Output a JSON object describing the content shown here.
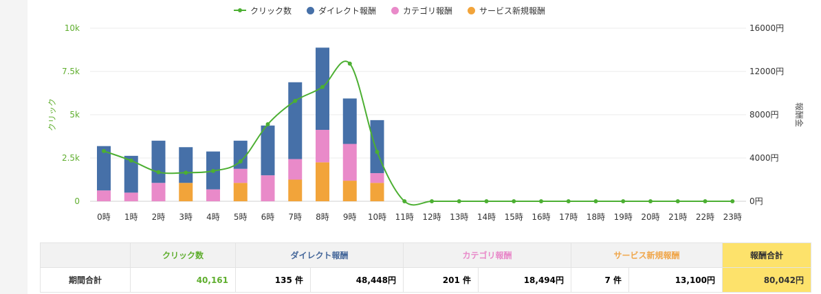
{
  "legend": {
    "clicks": "クリック数",
    "direct": "ダイレクト報酬",
    "category": "カテゴリ報酬",
    "service": "サービス新規報酬"
  },
  "colors": {
    "clicks": "#4caf32",
    "direct": "#4670a8",
    "category": "#e98ac9",
    "service": "#f2a43a"
  },
  "axes": {
    "left_label": "クリック",
    "right_label": "報酬金",
    "left_ticks": [
      "0",
      "2.5k",
      "5k",
      "7.5k",
      "10k"
    ],
    "right_ticks": [
      "0円",
      "4000円",
      "8000円",
      "12000円",
      "16000円"
    ]
  },
  "chart_data": {
    "type": "bar",
    "stacked": true,
    "categories": [
      "0時",
      "1時",
      "2時",
      "3時",
      "4時",
      "5時",
      "6時",
      "7時",
      "8時",
      "9時",
      "10時",
      "11時",
      "12時",
      "13時",
      "14時",
      "15時",
      "16時",
      "17時",
      "18時",
      "19時",
      "20時",
      "21時",
      "22時",
      "23時"
    ],
    "ylim_left": [
      0,
      10000
    ],
    "ylim_right": [
      0,
      16000
    ],
    "series": [
      {
        "name": "サービス新規報酬",
        "axis": "right",
        "values": [
          0,
          0,
          0,
          1700,
          0,
          1700,
          0,
          2000,
          3600,
          1900,
          1700,
          0,
          0,
          0,
          0,
          0,
          0,
          0,
          0,
          0,
          0,
          0,
          0,
          0
        ]
      },
      {
        "name": "カテゴリ報酬",
        "axis": "right",
        "values": [
          1000,
          800,
          1700,
          0,
          1100,
          1300,
          2400,
          1900,
          3000,
          3400,
          900,
          0,
          0,
          0,
          0,
          0,
          0,
          0,
          0,
          0,
          0,
          0,
          0,
          0
        ]
      },
      {
        "name": "ダイレクト報酬",
        "axis": "right",
        "values": [
          4100,
          3400,
          3900,
          3300,
          3500,
          2600,
          4600,
          7100,
          7600,
          4200,
          4900,
          0,
          0,
          0,
          0,
          0,
          0,
          0,
          0,
          0,
          0,
          0,
          0,
          0
        ]
      },
      {
        "name": "クリック数",
        "type": "line",
        "axis": "left",
        "values": [
          2900,
          2350,
          1680,
          1650,
          1750,
          2300,
          4450,
          5800,
          6600,
          7950,
          2850,
          0,
          0,
          0,
          0,
          0,
          0,
          0,
          0,
          0,
          0,
          0,
          0,
          0
        ]
      }
    ],
    "grid": true,
    "legend_position": "top-center"
  },
  "summary": {
    "headers": [
      "クリック数",
      "ダイレクト報酬",
      "カテゴリ報酬",
      "サービス新規報酬",
      "報酬合計"
    ],
    "row_label": "期間合計",
    "clicks": "40,161",
    "direct_count": "135 件",
    "direct_amount": "48,448円",
    "category_count": "201 件",
    "category_amount": "18,494円",
    "service_count": "7 件",
    "service_amount": "13,100円",
    "total": "80,042円"
  }
}
